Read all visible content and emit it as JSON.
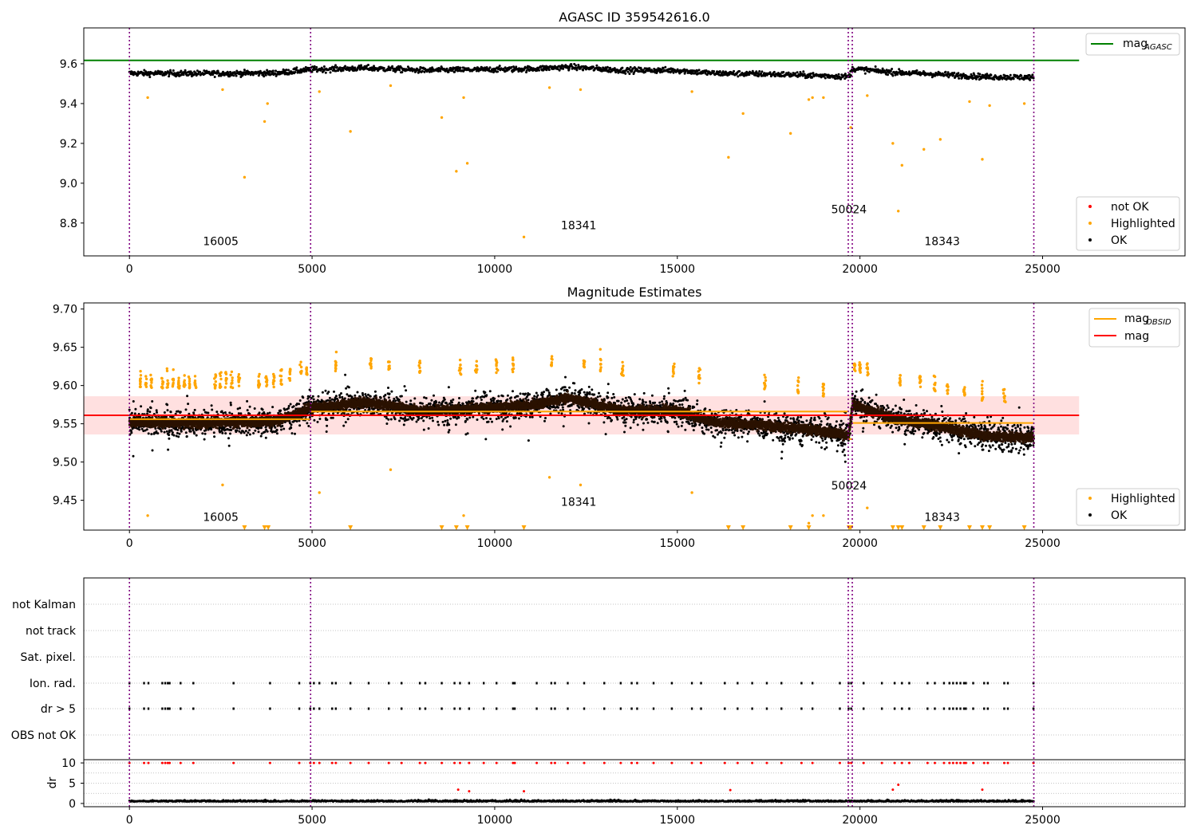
{
  "chart_data": [
    {
      "type": "scatter",
      "title": "AGASC ID 359542616.0",
      "xlim": [
        -1250,
        28900
      ],
      "ylim": [
        8.635,
        9.78
      ],
      "x_ticks": [
        "0",
        "5000",
        "10000",
        "15000",
        "20000",
        "25000"
      ],
      "y_ticks": [
        "8.8",
        "9.0",
        "9.2",
        "9.4",
        "9.6"
      ],
      "vlines": [
        0,
        4960,
        19680,
        19790,
        24760
      ],
      "hline": {
        "label": "mag_AGASC",
        "value": 9.617,
        "color": "#008000",
        "x_range": [
          -1250,
          26000
        ]
      },
      "obsid_labels": [
        {
          "text": "16005",
          "x": 2500,
          "y": 8.69
        },
        {
          "text": "18341",
          "x": 12300,
          "y": 8.77
        },
        {
          "text": "50024",
          "x": 19700,
          "y": 8.85
        },
        {
          "text": "18343",
          "x": 22250,
          "y": 8.69
        }
      ],
      "series": [
        {
          "name": "not OK",
          "color": "#ff0000"
        },
        {
          "name": "Highlighted",
          "color": "#ffa500"
        },
        {
          "name": "OK",
          "color": "#000000"
        }
      ],
      "legend_upper": [
        "mag_AGASC"
      ],
      "legend_lower": [
        "not OK",
        "Highlighted",
        "OK"
      ],
      "legend_placement": "upper-right and lower-right",
      "outliers": [
        [
          500,
          9.43
        ],
        [
          2550,
          9.47
        ],
        [
          3150,
          9.03
        ],
        [
          3700,
          9.31
        ],
        [
          3780,
          9.4
        ],
        [
          5200,
          9.46
        ],
        [
          6050,
          9.26
        ],
        [
          7150,
          9.49
        ],
        [
          8550,
          9.33
        ],
        [
          8950,
          9.06
        ],
        [
          9150,
          9.43
        ],
        [
          9250,
          9.1
        ],
        [
          10800,
          8.73
        ],
        [
          11500,
          9.48
        ],
        [
          12350,
          9.47
        ],
        [
          15400,
          9.46
        ],
        [
          16400,
          9.13
        ],
        [
          16800,
          9.35
        ],
        [
          18100,
          9.25
        ],
        [
          18600,
          9.42
        ],
        [
          18700,
          9.43
        ],
        [
          19000,
          9.43
        ],
        [
          19750,
          9.28
        ],
        [
          20200,
          9.44
        ],
        [
          20900,
          9.2
        ],
        [
          21050,
          8.86
        ],
        [
          21150,
          9.09
        ],
        [
          21750,
          9.17
        ],
        [
          22200,
          9.22
        ],
        [
          23000,
          9.41
        ],
        [
          23350,
          9.12
        ],
        [
          23550,
          9.39
        ],
        [
          24500,
          9.4
        ]
      ]
    },
    {
      "type": "scatter",
      "title": "Magnitude Estimates",
      "xlim": [
        -1250,
        28900
      ],
      "ylim": [
        9.411,
        9.708
      ],
      "x_ticks": [
        "0",
        "5000",
        "10000",
        "15000",
        "20000",
        "25000"
      ],
      "y_ticks": [
        "9.45",
        "9.50",
        "9.55",
        "9.60",
        "9.65",
        "9.70"
      ],
      "vlines": [
        0,
        4960,
        19680,
        19790,
        24760
      ],
      "mag_line": {
        "label": "mag",
        "value": 9.561,
        "color": "#ff0000",
        "band": [
          9.536,
          9.586
        ]
      },
      "obsid_segments": [
        {
          "x_range": [
            0,
            4960
          ],
          "value": 9.556
        },
        {
          "x_range": [
            4960,
            19680
          ],
          "value": 9.566
        },
        {
          "x_range": [
            19680,
            19790
          ],
          "value": 9.53
        },
        {
          "x_range": [
            19790,
            24760
          ],
          "value": 9.551
        }
      ],
      "obsid_labels": [
        {
          "text": "16005",
          "x": 2500,
          "y": 9.423
        },
        {
          "text": "18341",
          "x": 12300,
          "y": 9.443
        },
        {
          "text": "50024",
          "x": 19700,
          "y": 9.464
        },
        {
          "text": "18343",
          "x": 22250,
          "y": 9.423
        }
      ],
      "legend_upper": [
        "mag_OBSID",
        "mag"
      ],
      "legend_lower": [
        "Highlighted",
        "OK"
      ],
      "legend_placement": "upper-right and lower-right",
      "below_range_x": [
        3150,
        3700,
        3800,
        6050,
        8550,
        8950,
        9250,
        10800,
        16400,
        16800,
        18100,
        18600,
        19700,
        19750,
        20900,
        21050,
        21150,
        21750,
        22200,
        23000,
        23350,
        23550,
        24500
      ]
    },
    {
      "type": "scatter",
      "xlim": [
        -1250,
        28900
      ],
      "x_ticks": [
        "0",
        "5000",
        "10000",
        "15000",
        "20000",
        "25000"
      ],
      "vlines": [
        0,
        4960,
        19680,
        19790,
        24760
      ],
      "flag_rows": [
        "not Kalman",
        "not track",
        "Sat. pixel.",
        "Ion. rad.",
        "dr > 5",
        "OBS not OK"
      ],
      "flagged_rows": [
        "Ion. rad.",
        "dr > 5"
      ],
      "dr_axis": {
        "label": "dr",
        "ylim": [
          -0.8,
          10.8
        ],
        "y_ticks": [
          "0",
          "5",
          "10"
        ]
      },
      "flag_times": [
        0,
        400,
        520,
        900,
        980,
        1050,
        1100,
        1400,
        1750,
        2850,
        3850,
        4650,
        4950,
        5050,
        5200,
        5550,
        5650,
        6050,
        6550,
        7100,
        7450,
        7950,
        8100,
        8550,
        8900,
        9050,
        9300,
        9700,
        10050,
        10500,
        10550,
        11150,
        11550,
        11650,
        12000,
        12450,
        13000,
        13450,
        13750,
        13900,
        14350,
        14850,
        15400,
        15650,
        16300,
        16650,
        17050,
        17450,
        17850,
        18400,
        18700,
        19450,
        19690,
        19760,
        20100,
        20600,
        20950,
        21150,
        21350,
        21850,
        22050,
        22300,
        22450,
        22550,
        22650,
        22750,
        22850,
        22900,
        23100,
        23400,
        23500,
        23950,
        24050,
        24750
      ],
      "dr_high": [
        [
          9000,
          3.4
        ],
        [
          9300,
          3.0
        ],
        [
          10800,
          3.0
        ],
        [
          16450,
          3.3
        ],
        [
          20900,
          3.4
        ],
        [
          21050,
          4.6
        ],
        [
          23350,
          3.4
        ]
      ]
    }
  ]
}
